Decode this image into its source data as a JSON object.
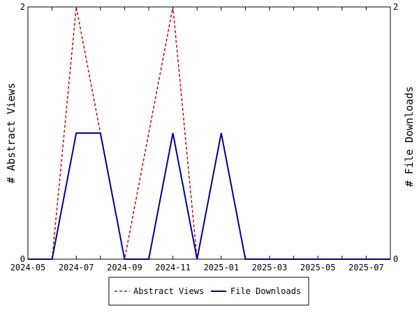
{
  "chart_data": {
    "type": "line",
    "x": [
      "2024-05",
      "2024-06",
      "2024-07",
      "2024-08",
      "2024-09",
      "2024-10",
      "2024-11",
      "2024-12",
      "2025-01",
      "2025-02",
      "2025-03",
      "2025-04",
      "2025-05",
      "2025-06",
      "2025-07",
      "2025-08"
    ],
    "series": [
      {
        "name": "Abstract Views",
        "values": [
          0,
          0,
          2,
          1,
          0,
          1,
          2,
          0,
          1,
          0,
          0,
          0,
          0,
          0,
          0,
          0
        ],
        "color": "#cc0000",
        "dash": "dashed"
      },
      {
        "name": "File Downloads",
        "values": [
          0,
          0,
          1,
          1,
          0,
          0,
          1,
          0,
          1,
          0,
          0,
          0,
          0,
          0,
          0,
          0
        ],
        "color": "#000099",
        "dash": "solid"
      }
    ],
    "xticks": [
      "2024-05",
      "2024-07",
      "2024-09",
      "2024-11",
      "2025-01",
      "2025-03",
      "2025-05",
      "2025-07"
    ],
    "ylabel_left": "# Abstract Views",
    "ylabel_right": "# File Downloads",
    "ylim_left": [
      0,
      2
    ],
    "ylim_right": [
      0,
      2
    ],
    "yticks_left": [
      "0",
      "2"
    ],
    "yticks_right": [
      "0",
      "2"
    ],
    "grid": false,
    "legend_placement": "bottom-center"
  }
}
